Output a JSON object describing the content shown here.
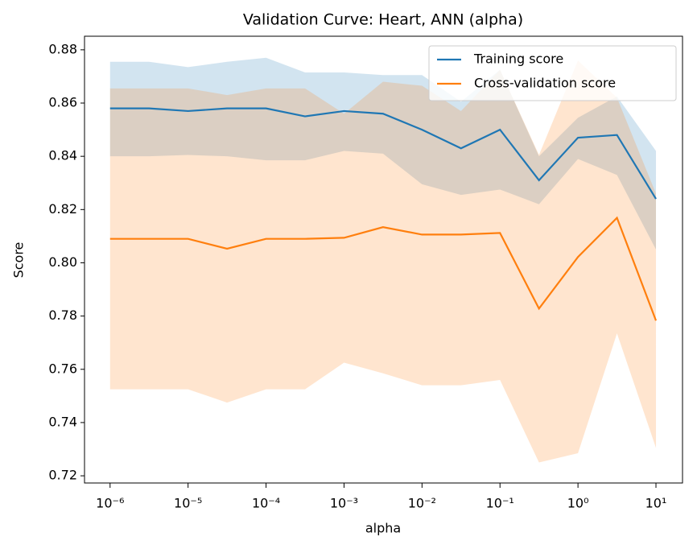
{
  "chart_data": {
    "type": "line",
    "title": "Validation Curve: Heart, ANN (alpha)",
    "x_label": "alpha",
    "y_label": "Score",
    "log_x": true,
    "x": [
      1e-06,
      3.1623e-06,
      1e-05,
      3.1623e-05,
      0.0001,
      0.00031623,
      0.001,
      0.0031623,
      0.01,
      0.031623,
      0.1,
      0.31623,
      1,
      3.1623,
      10
    ],
    "series": [
      {
        "name": "Training score",
        "color": "#1f77b4",
        "values": [
          0.858,
          0.858,
          0.857,
          0.858,
          0.858,
          0.855,
          0.857,
          0.856,
          0.85,
          0.843,
          0.85,
          0.831,
          0.847,
          0.848,
          0.824
        ],
        "upper": [
          0.8755,
          0.8755,
          0.8735,
          0.8755,
          0.877,
          0.8715,
          0.8715,
          0.8705,
          0.8705,
          0.8605,
          0.8725,
          0.84,
          0.8545,
          0.8625,
          0.842
        ],
        "lower": [
          0.84,
          0.84,
          0.8405,
          0.84,
          0.8385,
          0.8385,
          0.842,
          0.841,
          0.8295,
          0.8255,
          0.8275,
          0.822,
          0.839,
          0.833,
          0.805
        ]
      },
      {
        "name": "Cross-validation score",
        "color": "#ff7f0e",
        "values": [
          0.809,
          0.809,
          0.809,
          0.8053,
          0.809,
          0.809,
          0.8094,
          0.8134,
          0.8106,
          0.8106,
          0.8112,
          0.7828,
          0.8022,
          0.8169,
          0.7783
        ],
        "upper": [
          0.8655,
          0.8655,
          0.8655,
          0.863,
          0.8655,
          0.8655,
          0.856,
          0.868,
          0.8665,
          0.857,
          0.8725,
          0.8405,
          0.876,
          0.862,
          0.826
        ],
        "lower": [
          0.7525,
          0.7525,
          0.7525,
          0.7475,
          0.7525,
          0.7525,
          0.7625,
          0.7585,
          0.754,
          0.754,
          0.756,
          0.725,
          0.7285,
          0.7735,
          0.7305
        ]
      }
    ],
    "xlim": [
      4.7e-07,
      21.9
    ],
    "ylim": [
      0.7173,
      0.8851
    ],
    "xticks": [
      {
        "value": 1e-06,
        "label": "10⁻⁶"
      },
      {
        "value": 1e-05,
        "label": "10⁻⁵"
      },
      {
        "value": 0.0001,
        "label": "10⁻⁴"
      },
      {
        "value": 0.001,
        "label": "10⁻³"
      },
      {
        "value": 0.01,
        "label": "10⁻²"
      },
      {
        "value": 0.1,
        "label": "10⁻¹"
      },
      {
        "value": 1,
        "label": "10⁰"
      },
      {
        "value": 10,
        "label": "10¹"
      }
    ],
    "yticks": [
      {
        "value": 0.72,
        "label": "0.72"
      },
      {
        "value": 0.74,
        "label": "0.74"
      },
      {
        "value": 0.76,
        "label": "0.76"
      },
      {
        "value": 0.78,
        "label": "0.78"
      },
      {
        "value": 0.8,
        "label": "0.80"
      },
      {
        "value": 0.82,
        "label": "0.82"
      },
      {
        "value": 0.84,
        "label": "0.84"
      },
      {
        "value": 0.86,
        "label": "0.86"
      },
      {
        "value": 0.88,
        "label": "0.88"
      }
    ],
    "band_opacity": 0.2,
    "legend": "upper right"
  }
}
